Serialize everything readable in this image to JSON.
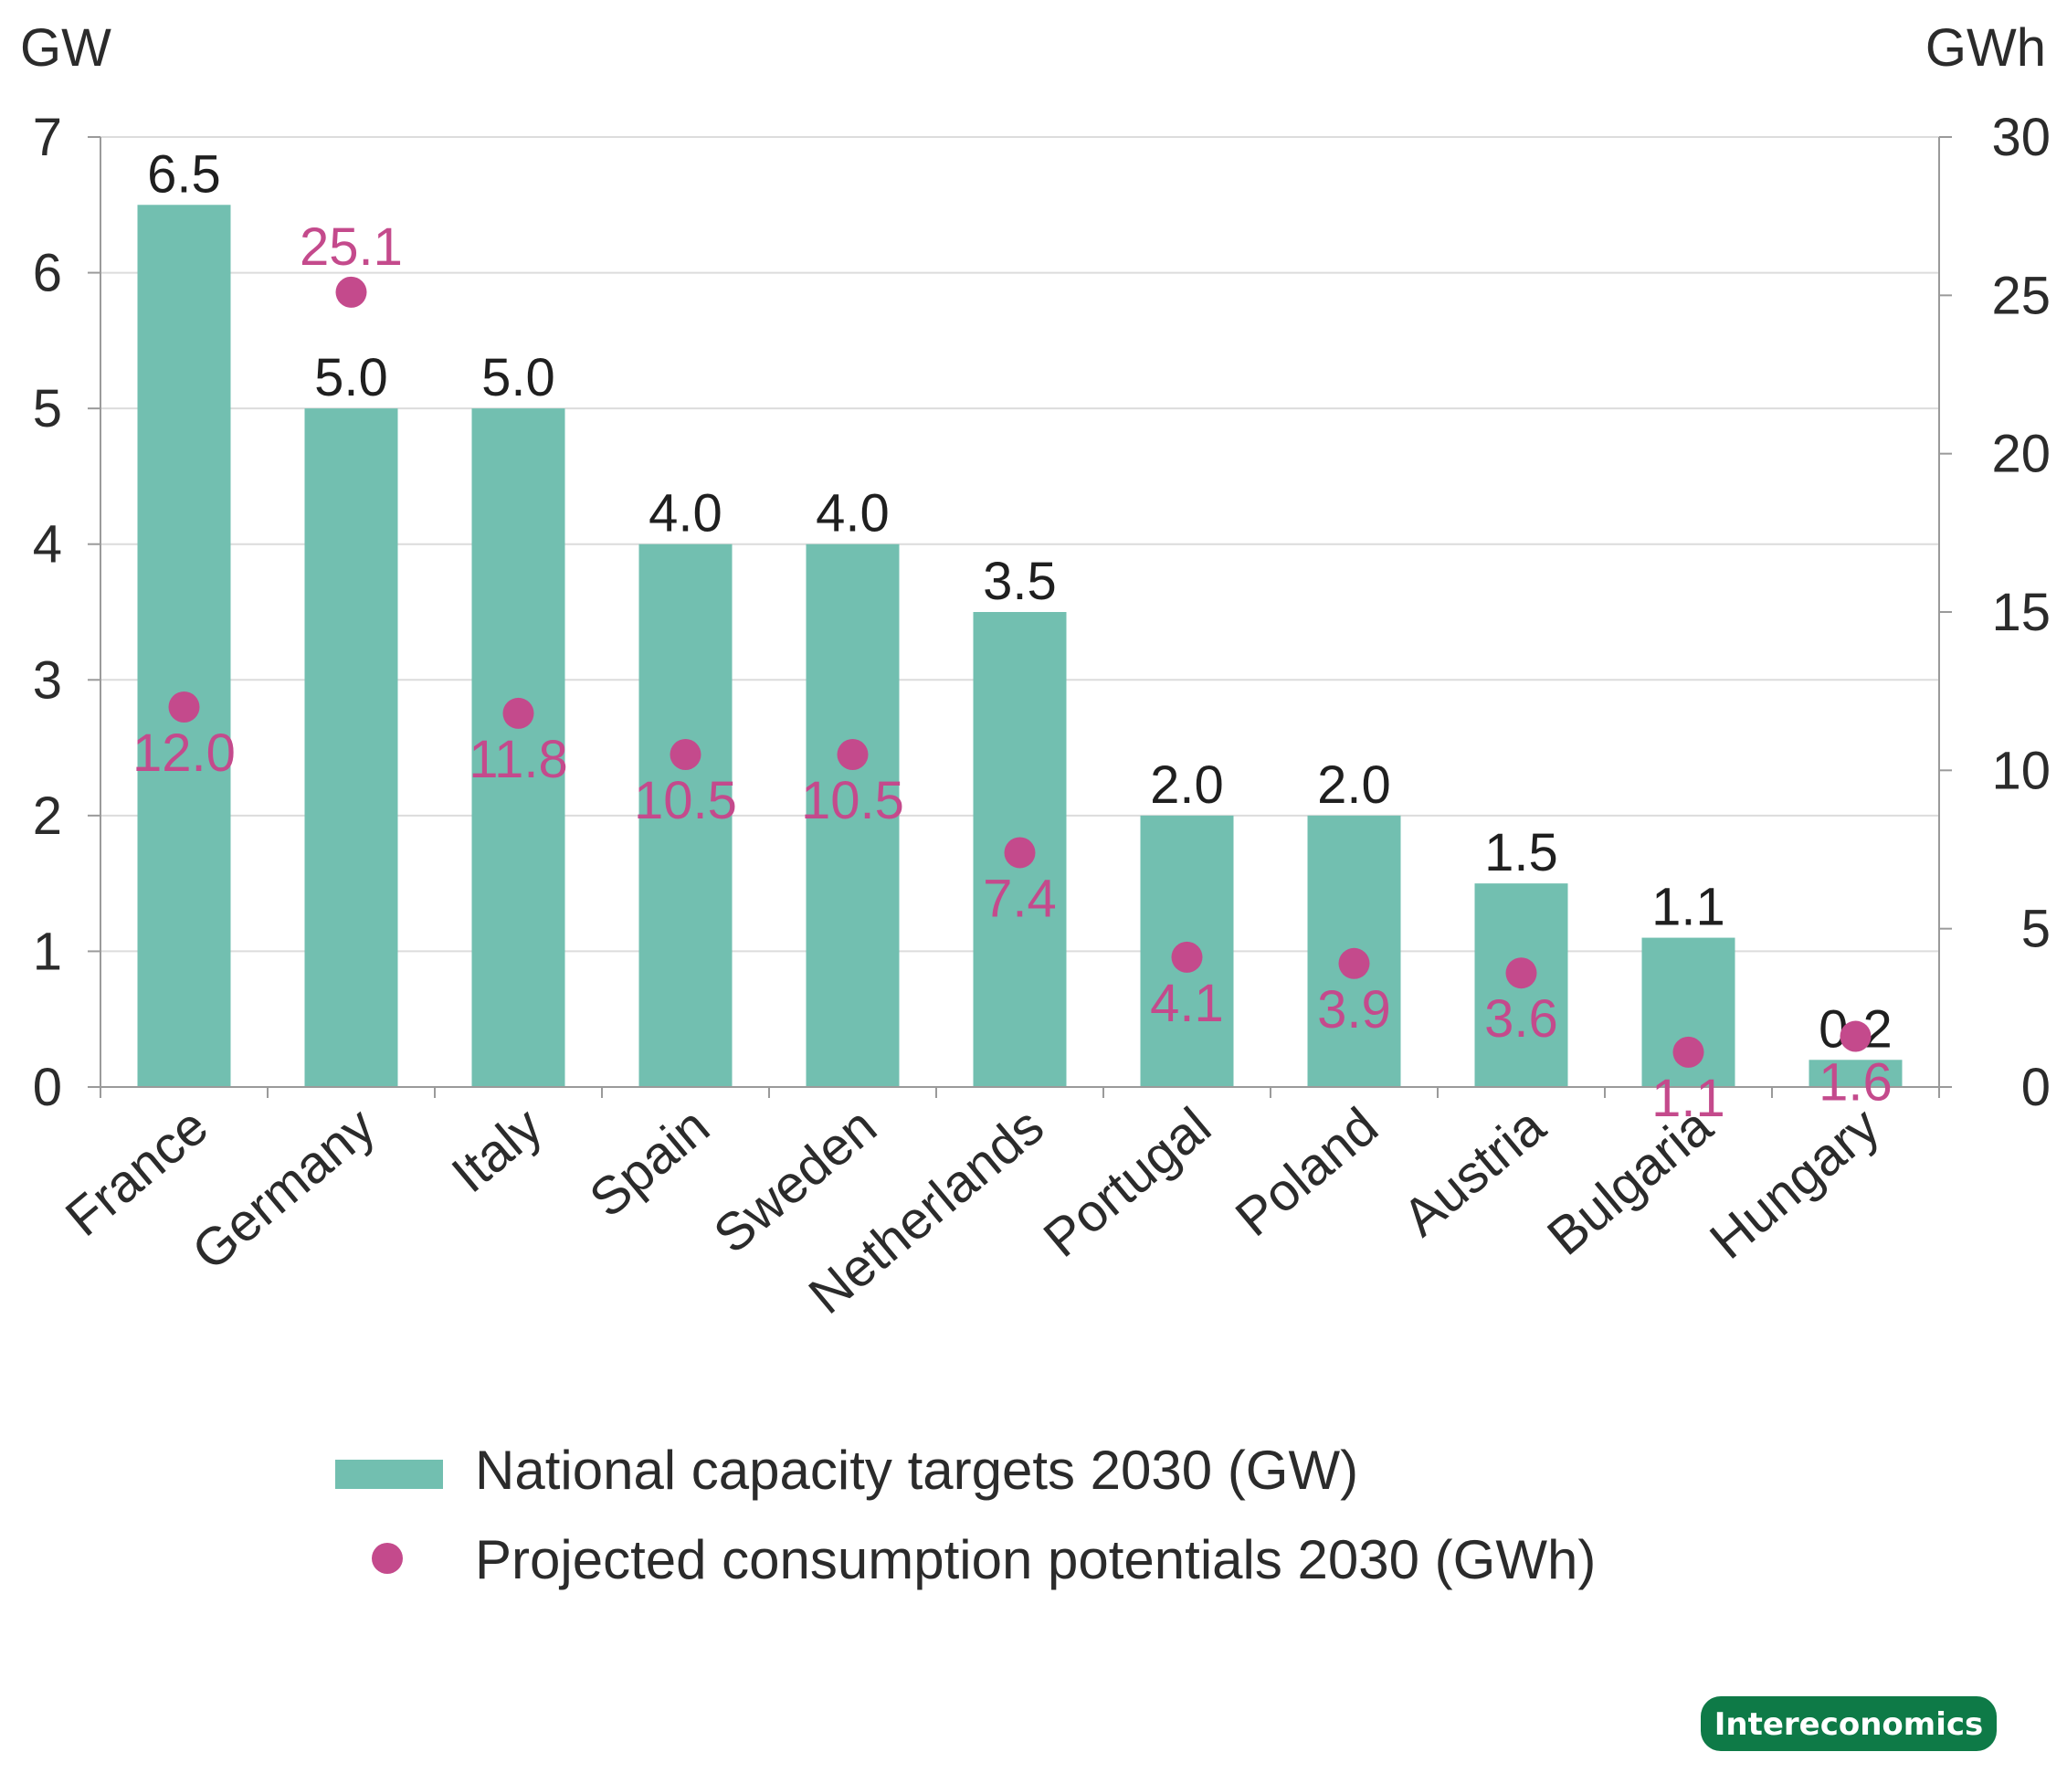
{
  "chart_data": {
    "type": "bar",
    "categories": [
      "France",
      "Germany",
      "Italy",
      "Spain",
      "Sweden",
      "Netherlands",
      "Portugal",
      "Poland",
      "Austria",
      "Bulgaria",
      "Hungary"
    ],
    "series": [
      {
        "name": "National capacity targets 2030 (GW)",
        "type": "bar",
        "axis": "left",
        "values": [
          6.5,
          5.0,
          5.0,
          4.0,
          4.0,
          3.5,
          2.0,
          2.0,
          1.5,
          1.1,
          0.2
        ],
        "labels": [
          "6.5",
          "5.0",
          "5.0",
          "4.0",
          "4.0",
          "3.5",
          "2.0",
          "2.0",
          "1.5",
          "1.1",
          "0.2"
        ],
        "color": "#72bfb0"
      },
      {
        "name": "Projected consumption potentials 2030 (GWh)",
        "type": "scatter",
        "axis": "right",
        "values": [
          12.0,
          25.1,
          11.8,
          10.5,
          10.5,
          7.4,
          4.1,
          3.9,
          3.6,
          1.1,
          1.6
        ],
        "labels": [
          "12.0",
          "25.1",
          "11.8",
          "10.5",
          "10.5",
          "7.4",
          "4.1",
          "3.9",
          "3.6",
          "1.1",
          "1.6"
        ],
        "color": "#c44a8c"
      }
    ],
    "y_left": {
      "label": "GW",
      "ylim": [
        0,
        7
      ],
      "ticks": [
        "0",
        "1",
        "2",
        "3",
        "4",
        "5",
        "6",
        "7"
      ]
    },
    "y_right": {
      "label": "GWh",
      "ylim": [
        0,
        30
      ],
      "ticks": [
        "0",
        "5",
        "10",
        "15",
        "20",
        "25",
        "30"
      ]
    },
    "grid": true,
    "legend_position": "bottom"
  },
  "source_badge": "Intereconomics"
}
